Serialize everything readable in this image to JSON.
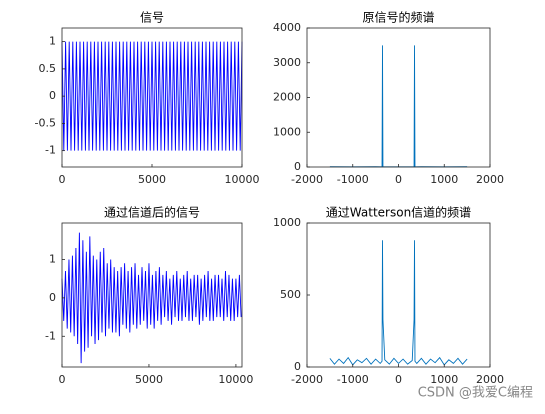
{
  "chart_data": [
    {
      "type": "line",
      "title": "信号",
      "xlim": [
        0,
        10000
      ],
      "xticks": [
        0,
        5000,
        10000
      ],
      "ylim": [
        -1.3,
        1.25
      ],
      "yticks": [
        -1,
        -0.5,
        0,
        0.5,
        1
      ],
      "series": [
        {
          "color": "#0000ff",
          "x": [
            0,
            100,
            200,
            300,
            400,
            500,
            600,
            700,
            800,
            900,
            1000,
            1100,
            1200,
            1300,
            1400,
            1500,
            1600,
            1700,
            1800,
            1900,
            2000,
            2100,
            2200,
            2300,
            2400,
            2500,
            2600,
            2700,
            2800,
            2900,
            3000,
            3100,
            3200,
            3300,
            3400,
            3500,
            3600,
            3700,
            3800,
            3900,
            4000,
            4100,
            4200,
            4300,
            4400,
            4500,
            4600,
            4700,
            4800,
            4900,
            5000,
            5100,
            5200,
            5300,
            5400,
            5500,
            5600,
            5700,
            5800,
            5900,
            6000,
            6100,
            6200,
            6300,
            6400,
            6500,
            6600,
            6700,
            6800,
            6900,
            7000,
            7100,
            7200,
            7300,
            7400,
            7500,
            7600,
            7700,
            7800,
            7900,
            8000,
            8100,
            8200,
            8300,
            8400,
            8500,
            8600,
            8700,
            8800,
            8900,
            9000,
            9100,
            9200,
            9300,
            9400,
            9500,
            9600,
            9700,
            9800,
            9900,
            10000
          ],
          "values": [
            1,
            -1,
            1,
            -1,
            1,
            -1,
            1,
            -1,
            1,
            -1,
            1,
            -1,
            1,
            -1,
            1,
            -1,
            1,
            -1,
            1,
            -1,
            1,
            -1,
            1,
            -1,
            1,
            -1,
            1,
            -1,
            1,
            -1,
            1,
            -1,
            1,
            -1,
            1,
            -1,
            1,
            -1,
            1,
            -1,
            1,
            -1,
            1,
            -1,
            1,
            -1,
            1,
            -1,
            1,
            -1,
            1,
            -1,
            1,
            -1,
            1,
            -1,
            1,
            -1,
            1,
            -1,
            1,
            -1,
            1,
            -1,
            1,
            -1,
            1,
            -1,
            1,
            -1,
            1,
            -1,
            1,
            -1,
            1,
            -1,
            1,
            -1,
            1,
            -1,
            1,
            -1,
            1,
            -1,
            1,
            -1,
            1,
            -1,
            1,
            -1,
            1,
            -1,
            1,
            -1,
            1,
            -1,
            1,
            -1,
            1,
            -1,
            1
          ]
        }
      ]
    },
    {
      "type": "line",
      "title": "原信号的频谱",
      "xlim": [
        -2000,
        2000
      ],
      "xticks": [
        -2000,
        -1000,
        0,
        1000,
        2000
      ],
      "ylim": [
        0,
        4000
      ],
      "yticks": [
        0,
        1000,
        2000,
        3000,
        4000
      ],
      "series": [
        {
          "color": "#0072bd",
          "x": [
            -1500,
            -1000,
            -500,
            -360,
            -350,
            -340,
            0,
            340,
            350,
            360,
            500,
            1000,
            1500
          ],
          "values": [
            8,
            5,
            10,
            6,
            3500,
            6,
            4,
            6,
            3500,
            6,
            9,
            5,
            8
          ]
        }
      ]
    },
    {
      "type": "line",
      "title": "通过信道后的信号",
      "xlim": [
        0,
        10350
      ],
      "xticks": [
        0,
        5000,
        10000
      ],
      "ylim": [
        -1.8,
        1.95
      ],
      "yticks": [
        -1,
        0,
        1
      ],
      "series": [
        {
          "color": "#0000ff",
          "x": [
            0,
            100,
            200,
            300,
            400,
            500,
            600,
            700,
            800,
            900,
            1000,
            1100,
            1200,
            1300,
            1400,
            1500,
            1600,
            1700,
            1800,
            1900,
            2000,
            2100,
            2200,
            2300,
            2400,
            2500,
            2600,
            2700,
            2800,
            2900,
            3000,
            3100,
            3200,
            3300,
            3400,
            3500,
            3600,
            3700,
            3800,
            3900,
            4000,
            4100,
            4200,
            4300,
            4400,
            4500,
            4600,
            4700,
            4800,
            4900,
            5000,
            5100,
            5200,
            5300,
            5400,
            5500,
            5600,
            5700,
            5800,
            5900,
            6000,
            6100,
            6200,
            6300,
            6400,
            6500,
            6600,
            6700,
            6800,
            6900,
            7000,
            7100,
            7200,
            7300,
            7400,
            7500,
            7600,
            7700,
            7800,
            7900,
            8000,
            8100,
            8200,
            8300,
            8400,
            8500,
            8600,
            8700,
            8800,
            8900,
            9000,
            9100,
            9200,
            9300,
            9400,
            9500,
            9600,
            9700,
            9800,
            9900,
            10000,
            10100,
            10200,
            10300
          ],
          "values": [
            0.5,
            -0.6,
            0.7,
            -0.8,
            1.0,
            -0.9,
            1.1,
            -1.0,
            1.3,
            -1.2,
            1.7,
            -1.7,
            1.5,
            -1.4,
            1.2,
            -1.3,
            1.6,
            -1.0,
            1.1,
            -1.2,
            1.0,
            -1.1,
            1.2,
            -0.9,
            1.3,
            -1.0,
            0.9,
            -0.8,
            1.0,
            -0.9,
            0.8,
            -0.9,
            0.7,
            -1.0,
            0.8,
            -0.7,
            0.9,
            -0.8,
            0.7,
            -0.9,
            0.8,
            -0.7,
            0.9,
            -0.8,
            0.6,
            -0.7,
            0.8,
            -0.6,
            0.7,
            -0.8,
            0.9,
            -0.7,
            0.6,
            -0.8,
            0.7,
            -0.6,
            0.8,
            -0.7,
            0.6,
            -0.5,
            0.7,
            -0.6,
            0.5,
            -0.7,
            0.6,
            -0.5,
            0.7,
            -0.6,
            0.5,
            -0.6,
            0.6,
            -0.5,
            0.7,
            -0.6,
            0.5,
            -0.6,
            0.6,
            -0.5,
            0.6,
            -0.7,
            0.5,
            -0.6,
            0.6,
            -0.5,
            0.7,
            -0.6,
            0.5,
            -0.6,
            0.6,
            -0.5,
            0.6,
            -0.5,
            0.5,
            -0.6,
            0.7,
            -0.5,
            0.6,
            -0.6,
            0.5,
            -0.6,
            0.5,
            -0.5,
            0.6,
            -0.5
          ]
        }
      ]
    },
    {
      "type": "line",
      "title": "通过Watterson信道的频谱",
      "xlim": [
        -2000,
        2000
      ],
      "xticks": [
        -2000,
        -1000,
        0,
        1000,
        2000
      ],
      "ylim": [
        0,
        1000
      ],
      "yticks": [
        0,
        500,
        1000
      ],
      "series": [
        {
          "color": "#0072bd",
          "x": [
            -1500,
            -1400,
            -1300,
            -1200,
            -1100,
            -1000,
            -900,
            -800,
            -700,
            -600,
            -500,
            -400,
            -360,
            -350,
            -340,
            -300,
            -200,
            -100,
            0,
            100,
            200,
            300,
            340,
            350,
            360,
            400,
            500,
            600,
            700,
            800,
            900,
            1000,
            1100,
            1200,
            1300,
            1400,
            1500
          ],
          "values": [
            60,
            20,
            55,
            25,
            65,
            15,
            50,
            30,
            60,
            20,
            55,
            25,
            40,
            880,
            330,
            50,
            20,
            60,
            25,
            55,
            20,
            45,
            330,
            880,
            40,
            25,
            60,
            20,
            55,
            30,
            65,
            15,
            50,
            25,
            60,
            20,
            55
          ]
        }
      ]
    }
  ],
  "watermark": "CSDN @我爱C编程"
}
